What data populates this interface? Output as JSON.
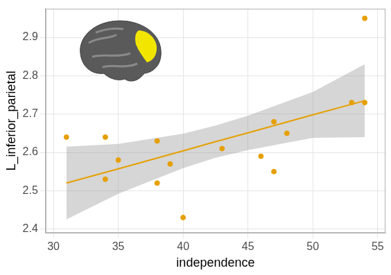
{
  "chart_data": {
    "type": "scatter",
    "x_label": "independence",
    "y_label": "L_inferior_parietal",
    "x": [
      31,
      34,
      34,
      35,
      38,
      38,
      39,
      40,
      43,
      46,
      47,
      47,
      48,
      53,
      54,
      54
    ],
    "values": [
      2.64,
      2.64,
      2.53,
      2.58,
      2.63,
      2.52,
      2.57,
      2.43,
      2.61,
      2.59,
      2.68,
      2.55,
      2.65,
      2.73,
      2.95,
      2.73
    ],
    "color": "#E69F00",
    "marker": "circle",
    "fit": {
      "x": [
        31,
        35,
        40,
        42.5,
        45,
        50,
        54
      ],
      "values": [
        2.52,
        2.557,
        2.604,
        2.628,
        2.651,
        2.698,
        2.735
      ],
      "ci_lower": [
        2.425,
        2.492,
        2.559,
        2.586,
        2.606,
        2.638,
        2.64
      ],
      "ci_upper": [
        2.615,
        2.622,
        2.649,
        2.67,
        2.696,
        2.758,
        2.83
      ],
      "color": "#E69F00",
      "line_style": "solid"
    },
    "xlim": [
      29.4,
      55.6
    ],
    "xticks": [
      30,
      35,
      40,
      45,
      50,
      55
    ],
    "ylim": [
      2.39,
      2.975
    ],
    "yticks": [
      2.4,
      2.5,
      2.6,
      2.7,
      2.8,
      2.9
    ],
    "grid": true
  }
}
